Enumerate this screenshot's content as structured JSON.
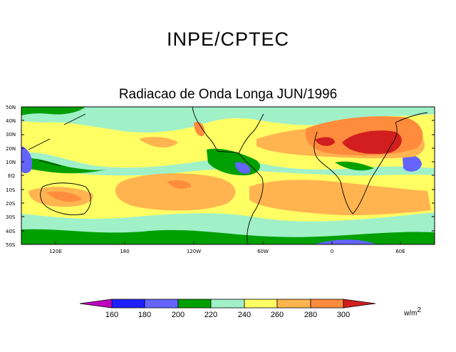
{
  "header": {
    "organization": "INPE/CPTEC",
    "subtitle": "Radiacao de Onda Longa JUN/1996"
  },
  "axes": {
    "lat_labels": [
      "50N",
      "40N",
      "30N",
      "20N",
      "10N",
      "EQ",
      "10S",
      "20S",
      "30S",
      "40S",
      "50S"
    ],
    "lon_labels": [
      "120E",
      "180",
      "120W",
      "60W",
      "0",
      "60E"
    ]
  },
  "legend": {
    "levels": [
      "160",
      "180",
      "200",
      "220",
      "240",
      "260",
      "280",
      "300"
    ],
    "colors": [
      "#c000c0",
      "#1e1eff",
      "#6464ff",
      "#00a000",
      "#a0f0c8",
      "#ffff64",
      "#ffb450",
      "#ff8c3c",
      "#d21e1e"
    ],
    "units_base": "w/m",
    "units_exp": "2"
  }
}
